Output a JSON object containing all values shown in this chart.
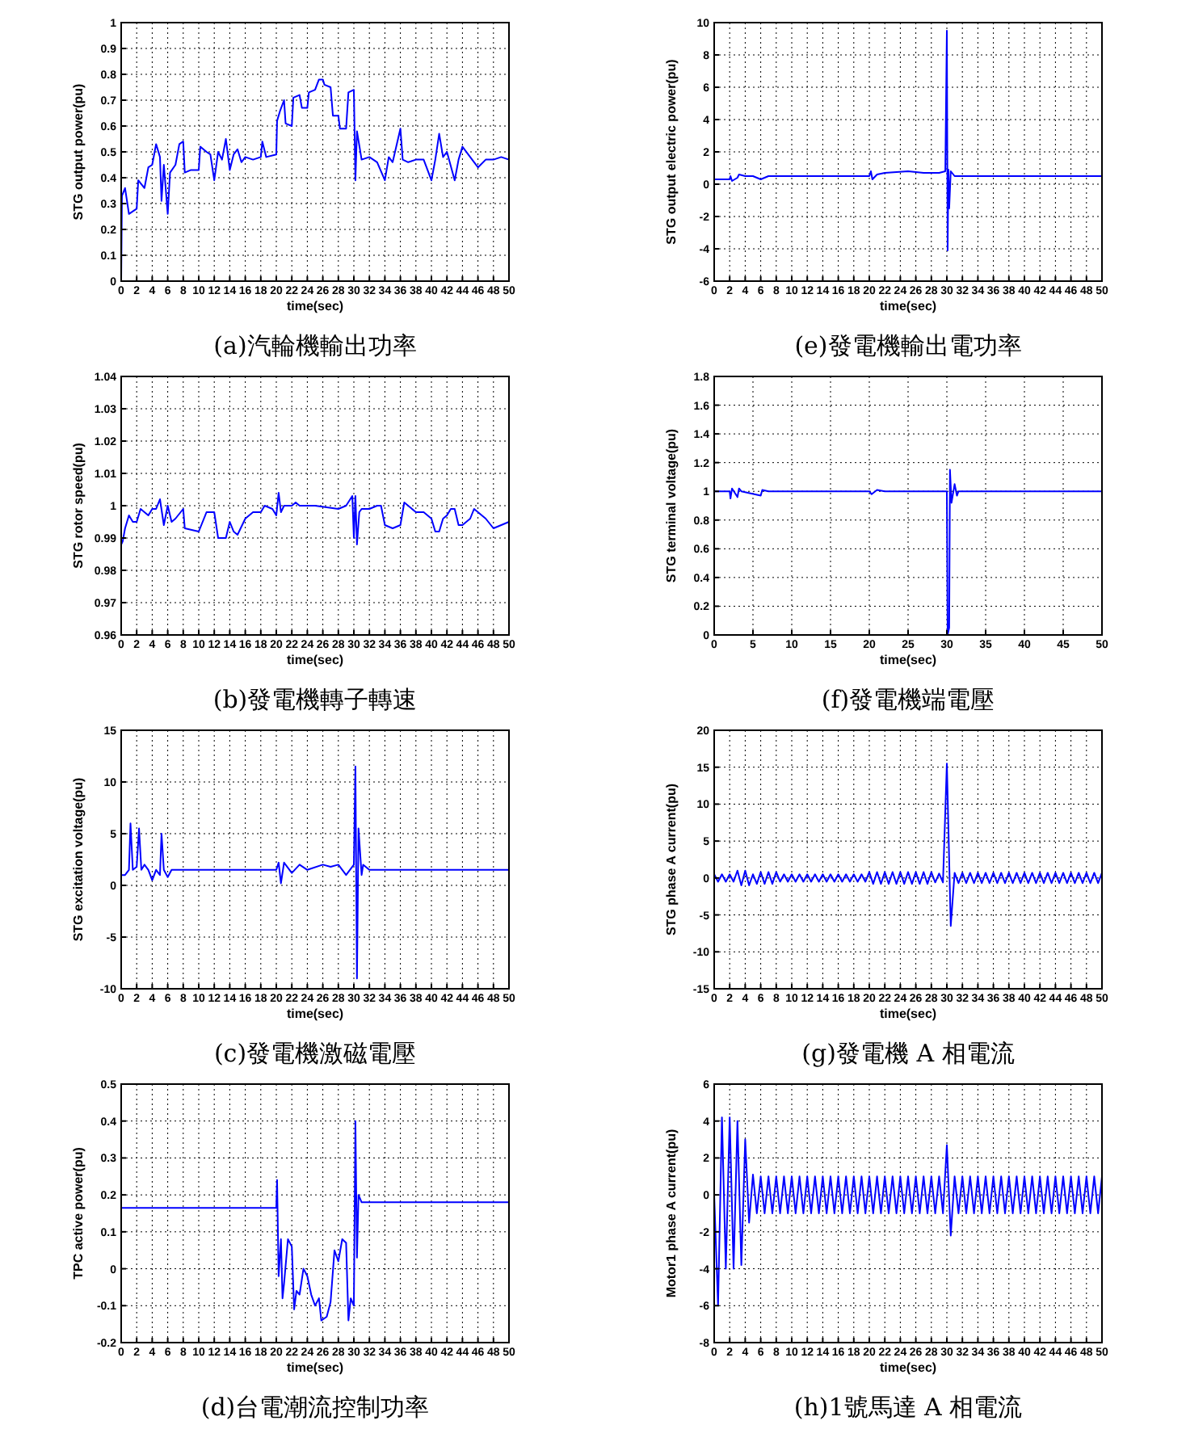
{
  "chart_data": [
    {
      "type": "line",
      "title": "(a)汽輪機輸出功率",
      "xlabel": "time(sec)",
      "ylabel": "STG output power(pu)",
      "xlim": [
        0,
        50
      ],
      "ylim": [
        0,
        1
      ],
      "xticks": [
        0,
        2,
        4,
        6,
        8,
        10,
        12,
        14,
        16,
        18,
        20,
        22,
        24,
        26,
        28,
        30,
        32,
        34,
        36,
        38,
        40,
        42,
        44,
        46,
        48,
        50
      ],
      "yticks": [
        0,
        0.1,
        0.2,
        0.3,
        0.4,
        0.5,
        0.6,
        0.7,
        0.8,
        0.9,
        1
      ],
      "grid": true,
      "series": [
        {
          "color": "#0000ff",
          "x": [
            0,
            0.1,
            0.5,
            1,
            1.5,
            2,
            2.2,
            3,
            3.5,
            4,
            4.5,
            5,
            5.2,
            5.5,
            6,
            6.3,
            7,
            7.5,
            8,
            8.2,
            9,
            10,
            10.2,
            11,
            11.5,
            12,
            12.5,
            13,
            13.5,
            14,
            14.5,
            15,
            15.5,
            16,
            17,
            18,
            18.2,
            18.7,
            20,
            20.1,
            20.5,
            21,
            21.2,
            22,
            22.2,
            23,
            23.3,
            24,
            24.2,
            25,
            25.5,
            26,
            26.2,
            27,
            27.3,
            28,
            28.2,
            29,
            29.3,
            30,
            30.2,
            30.4,
            31,
            32,
            33,
            34,
            34.5,
            35,
            36,
            36.3,
            37,
            38,
            39,
            40,
            40.5,
            41,
            41.5,
            42,
            43,
            43.5,
            44,
            45,
            46,
            47,
            48,
            49,
            50
          ],
          "values": [
            0,
            0.33,
            0.36,
            0.26,
            0.27,
            0.28,
            0.39,
            0.36,
            0.44,
            0.45,
            0.53,
            0.48,
            0.31,
            0.45,
            0.26,
            0.42,
            0.45,
            0.53,
            0.54,
            0.42,
            0.43,
            0.43,
            0.52,
            0.5,
            0.49,
            0.39,
            0.5,
            0.47,
            0.55,
            0.43,
            0.49,
            0.51,
            0.46,
            0.48,
            0.47,
            0.48,
            0.54,
            0.48,
            0.49,
            0.62,
            0.66,
            0.7,
            0.61,
            0.6,
            0.71,
            0.72,
            0.67,
            0.67,
            0.73,
            0.74,
            0.78,
            0.78,
            0.76,
            0.75,
            0.64,
            0.64,
            0.59,
            0.59,
            0.73,
            0.74,
            0.39,
            0.58,
            0.47,
            0.48,
            0.46,
            0.39,
            0.48,
            0.46,
            0.59,
            0.47,
            0.46,
            0.47,
            0.47,
            0.39,
            0.47,
            0.57,
            0.48,
            0.5,
            0.39,
            0.47,
            0.52,
            0.48,
            0.44,
            0.47,
            0.47,
            0.48,
            0.47
          ]
        }
      ]
    },
    {
      "type": "line",
      "title": "(e)發電機輸出電功率",
      "xlabel": "time(sec)",
      "ylabel": "STG output electric power(pu)",
      "xlim": [
        0,
        50
      ],
      "ylim": [
        -6,
        10
      ],
      "xticks": [
        0,
        2,
        4,
        6,
        8,
        10,
        12,
        14,
        16,
        18,
        20,
        22,
        24,
        26,
        28,
        30,
        32,
        34,
        36,
        38,
        40,
        42,
        44,
        46,
        48,
        50
      ],
      "yticks": [
        -6,
        -4,
        -2,
        0,
        2,
        4,
        6,
        8,
        10
      ],
      "grid": true,
      "series": [
        {
          "color": "#0000ff",
          "x": [
            0,
            2,
            2.1,
            2.3,
            3,
            3.2,
            4,
            5,
            6,
            7,
            8,
            20,
            20.2,
            20.4,
            21,
            22,
            25,
            27,
            29,
            29.8,
            30,
            30.1,
            30.2,
            30.3,
            30.5,
            31,
            50
          ],
          "values": [
            0.3,
            0.3,
            0.5,
            0.2,
            0.4,
            0.6,
            0.5,
            0.5,
            0.3,
            0.5,
            0.5,
            0.5,
            0.8,
            0.3,
            0.6,
            0.7,
            0.8,
            0.7,
            0.7,
            0.8,
            9.5,
            -4.1,
            0.9,
            -1.5,
            0.8,
            0.5,
            0.5
          ]
        }
      ]
    },
    {
      "type": "line",
      "title": "(b)發電機轉子轉速",
      "xlabel": "time(sec)",
      "ylabel": "STG rotor speed(pu)",
      "xlim": [
        0,
        50
      ],
      "ylim": [
        0.96,
        1.04
      ],
      "xticks": [
        0,
        2,
        4,
        6,
        8,
        10,
        12,
        14,
        16,
        18,
        20,
        22,
        24,
        26,
        28,
        30,
        32,
        34,
        36,
        38,
        40,
        42,
        44,
        46,
        48,
        50
      ],
      "yticks": [
        0.96,
        0.97,
        0.98,
        0.99,
        1,
        1.01,
        1.02,
        1.03,
        1.04
      ],
      "grid": true,
      "series": [
        {
          "color": "#0000ff",
          "x": [
            0,
            0.2,
            0.5,
            1,
            1.5,
            2,
            2.5,
            3,
            3.5,
            4,
            4.5,
            5,
            5.5,
            6,
            6.5,
            7,
            8,
            8.2,
            10,
            11,
            12,
            12.5,
            13.5,
            14,
            14.5,
            15,
            16,
            17,
            18,
            18.5,
            19.5,
            20,
            20.3,
            20.6,
            21,
            22,
            22.5,
            23,
            25,
            28,
            29,
            29.8,
            30,
            30.2,
            30.4,
            30.7,
            31,
            32,
            33,
            33.5,
            34,
            35,
            36,
            36.5,
            37,
            38,
            39,
            40,
            40.5,
            41,
            41.5,
            42,
            42.5,
            43,
            43.5,
            44,
            45,
            45.5,
            46,
            47,
            48,
            49,
            50
          ],
          "values": [
            0.988,
            0.989,
            0.993,
            0.997,
            0.995,
            0.995,
            0.999,
            0.998,
            0.997,
            0.999,
            0.999,
            1.002,
            0.994,
            1,
            0.995,
            0.996,
            0.999,
            0.993,
            0.992,
            0.998,
            0.998,
            0.99,
            0.99,
            0.995,
            0.992,
            0.991,
            0.996,
            0.998,
            0.998,
            1,
            0.999,
            0.997,
            1.004,
            0.998,
            1,
            1,
            1.001,
            1,
            1,
            0.999,
            1,
            1.003,
            0.99,
            1.003,
            0.988,
            0.998,
            0.999,
            0.999,
            1,
            1,
            0.994,
            0.993,
            0.994,
            1.001,
            1,
            0.998,
            0.998,
            0.996,
            0.992,
            0.992,
            0.996,
            0.997,
            0.999,
            0.999,
            0.994,
            0.994,
            0.996,
            0.999,
            0.998,
            0.996,
            0.993,
            0.994,
            0.995
          ]
        }
      ]
    },
    {
      "type": "line",
      "title": "(f)發電機端電壓",
      "xlabel": "time(sec)",
      "ylabel": "STG terminal voltage(pu)",
      "xlim": [
        0,
        50
      ],
      "ylim": [
        0,
        1.8
      ],
      "xticks": [
        0,
        5,
        10,
        15,
        20,
        25,
        30,
        35,
        40,
        45,
        50
      ],
      "yticks": [
        0,
        0.2,
        0.4,
        0.6,
        0.8,
        1,
        1.2,
        1.4,
        1.6,
        1.8
      ],
      "grid": true,
      "series": [
        {
          "color": "#0000ff",
          "x": [
            0,
            2,
            2.1,
            2.3,
            3,
            3.2,
            3.5,
            6,
            6.2,
            7,
            20,
            20.3,
            21,
            22,
            30,
            30.1,
            30.3,
            30.4,
            30.6,
            31,
            31.3,
            31.5,
            50
          ],
          "values": [
            1,
            1,
            0.95,
            1.02,
            0.96,
            1.02,
            1,
            0.97,
            1.01,
            1,
            1,
            0.98,
            1.01,
            1,
            1,
            0,
            0.05,
            1.15,
            0.92,
            1.05,
            0.97,
            1,
            1
          ]
        }
      ]
    },
    {
      "type": "line",
      "title": "(c)發電機激磁電壓",
      "xlabel": "time(sec)",
      "ylabel": "STG excitation voltage(pu)",
      "xlim": [
        0,
        50
      ],
      "ylim": [
        -10,
        15
      ],
      "xticks": [
        0,
        2,
        4,
        6,
        8,
        10,
        12,
        14,
        16,
        18,
        20,
        22,
        24,
        26,
        28,
        30,
        32,
        34,
        36,
        38,
        40,
        42,
        44,
        46,
        48,
        50
      ],
      "yticks": [
        -10,
        -5,
        0,
        5,
        10,
        15
      ],
      "grid": true,
      "series": [
        {
          "color": "#0000ff",
          "x": [
            0,
            0.5,
            1,
            1.2,
            1.5,
            2,
            2.3,
            2.6,
            3,
            3.5,
            4,
            4.5,
            5,
            5.2,
            5.5,
            6,
            6.5,
            8,
            20,
            20.3,
            20.6,
            21,
            22,
            23,
            24,
            26,
            27,
            28,
            29,
            30,
            30.2,
            30.4,
            30.6,
            31,
            31.2,
            32,
            50
          ],
          "values": [
            1,
            1,
            1.5,
            6,
            1.5,
            1.8,
            5.5,
            1.5,
            2,
            1.5,
            0.5,
            1.5,
            1,
            5,
            1.5,
            0.8,
            1.5,
            1.5,
            1.5,
            2.2,
            0.2,
            2.2,
            1.2,
            2,
            1.5,
            2,
            1.8,
            2,
            1,
            2,
            11.5,
            -9,
            5.5,
            1,
            2,
            1.5,
            1.5
          ]
        }
      ]
    },
    {
      "type": "line",
      "title": "(g)發電機 A 相電流",
      "xlabel": "time(sec)",
      "ylabel": "STG phase A current(pu)",
      "xlim": [
        0,
        50
      ],
      "ylim": [
        -15,
        20
      ],
      "xticks": [
        0,
        2,
        4,
        6,
        8,
        10,
        12,
        14,
        16,
        18,
        20,
        22,
        24,
        26,
        28,
        30,
        32,
        34,
        36,
        38,
        40,
        42,
        44,
        46,
        48,
        50
      ],
      "yticks": [
        -15,
        -10,
        -5,
        0,
        5,
        10,
        15,
        20
      ],
      "grid": true,
      "series": [
        {
          "color": "#0000ff",
          "x": [
            0,
            0.5,
            1,
            1.5,
            2,
            2.5,
            3,
            3.5,
            4,
            4.5,
            5,
            5.5,
            6,
            6.5,
            7,
            7.5,
            8,
            8.5,
            9,
            9.5,
            10,
            10.5,
            11,
            11.5,
            12,
            12.5,
            13,
            13.5,
            14,
            14.5,
            15,
            15.5,
            16,
            16.5,
            17,
            17.5,
            18,
            18.5,
            19,
            19.5,
            20,
            20.5,
            21,
            21.5,
            22,
            22.5,
            23,
            23.5,
            24,
            24.5,
            25,
            25.5,
            26,
            26.5,
            27,
            27.5,
            28,
            28.5,
            29,
            29.5,
            30,
            30.5,
            31,
            31.5,
            32,
            32.5,
            33,
            33.5,
            34,
            34.5,
            35,
            35.5,
            36,
            36.5,
            37,
            37.5,
            38,
            38.5,
            39,
            39.5,
            40,
            40.5,
            41,
            41.5,
            42,
            42.5,
            43,
            43.5,
            44,
            44.5,
            45,
            45.5,
            46,
            46.5,
            47,
            47.5,
            48,
            48.5,
            49,
            49.5,
            50
          ],
          "values": [
            0.5,
            -0.5,
            0.5,
            -0.5,
            0.5,
            -0.5,
            1,
            -1,
            1,
            -1,
            0.5,
            -0.8,
            0.8,
            -0.8,
            0.8,
            -0.8,
            0.8,
            -0.5,
            0.5,
            -0.5,
            0.5,
            -0.5,
            0.5,
            -0.5,
            0.5,
            -0.5,
            0.5,
            -0.5,
            0.5,
            -0.5,
            0.5,
            -0.5,
            0.5,
            -0.5,
            0.5,
            -0.5,
            0.5,
            -0.5,
            0.5,
            -0.5,
            0.8,
            -0.8,
            0.8,
            -0.8,
            0.8,
            -0.8,
            0.8,
            -0.8,
            0.8,
            -0.8,
            0.8,
            -0.8,
            0.8,
            -0.8,
            0.8,
            -0.8,
            0.8,
            -0.6,
            0.6,
            -0.6,
            15.5,
            -6.5,
            0.7,
            -0.7,
            0.7,
            -0.7,
            0.7,
            -0.7,
            0.7,
            -0.7,
            0.7,
            -0.7,
            0.7,
            -0.7,
            0.7,
            -0.7,
            0.7,
            -0.7,
            0.7,
            -0.7,
            0.7,
            -0.7,
            0.7,
            -0.7,
            0.7,
            -0.7,
            0.7,
            -0.7,
            0.7,
            -0.7,
            0.7,
            -0.7,
            0.7,
            -0.7,
            0.7,
            -0.7,
            0.7,
            -0.7,
            0.7,
            -0.7,
            0.7
          ]
        }
      ]
    },
    {
      "type": "line",
      "title": "(d)台電潮流控制功率",
      "xlabel": "time(sec)",
      "ylabel": "TPC active power(pu)",
      "xlim": [
        0,
        50
      ],
      "ylim": [
        -0.2,
        0.5
      ],
      "xticks": [
        0,
        2,
        4,
        6,
        8,
        10,
        12,
        14,
        16,
        18,
        20,
        22,
        24,
        26,
        28,
        30,
        32,
        34,
        36,
        38,
        40,
        42,
        44,
        46,
        48,
        50
      ],
      "yticks": [
        -0.2,
        -0.1,
        0,
        0.1,
        0.2,
        0.3,
        0.4,
        0.5
      ],
      "grid": true,
      "series": [
        {
          "color": "#0000ff",
          "x": [
            0.05,
            20,
            20.1,
            20.3,
            20.6,
            20.8,
            21,
            21.5,
            22,
            22.3,
            22.6,
            23,
            23.5,
            24,
            24.5,
            25,
            25.5,
            25.8,
            26.5,
            27,
            27.5,
            28,
            28.5,
            29,
            29.3,
            29.6,
            30,
            30.2,
            30.4,
            30.6,
            31,
            50
          ],
          "values": [
            0.165,
            0.165,
            0.24,
            -0.02,
            0.08,
            -0.08,
            -0.04,
            0.08,
            0.06,
            -0.11,
            -0.06,
            -0.07,
            0,
            -0.02,
            -0.07,
            -0.1,
            -0.08,
            -0.14,
            -0.13,
            -0.09,
            0.05,
            0.02,
            0.08,
            0.07,
            -0.14,
            -0.08,
            -0.1,
            0.4,
            0.03,
            0.2,
            0.18,
            0.18
          ]
        }
      ]
    },
    {
      "type": "line",
      "title": "(h)1號馬達 A 相電流",
      "xlabel": "time(sec)",
      "ylabel": "Motor1 phase A current(pu)",
      "xlim": [
        0,
        50
      ],
      "ylim": [
        -8,
        6
      ],
      "xticks": [
        0,
        2,
        4,
        6,
        8,
        10,
        12,
        14,
        16,
        18,
        20,
        22,
        24,
        26,
        28,
        30,
        32,
        34,
        36,
        38,
        40,
        42,
        44,
        46,
        48,
        50
      ],
      "yticks": [
        -8,
        -6,
        -4,
        -2,
        0,
        2,
        4,
        6
      ],
      "grid": true,
      "series": [
        {
          "color": "#0000ff",
          "x": [
            0,
            0.5,
            1,
            1.5,
            2,
            2.5,
            3,
            3.5,
            4,
            4.5,
            5,
            5.5,
            6,
            6.5,
            7,
            7.5,
            8,
            8.5,
            9,
            9.5,
            10,
            10.5,
            11,
            11.5,
            12,
            12.5,
            13,
            13.5,
            14,
            14.5,
            15,
            15.5,
            16,
            16.5,
            17,
            17.5,
            18,
            18.5,
            19,
            19.5,
            20,
            20.5,
            21,
            21.5,
            22,
            22.5,
            23,
            23.5,
            24,
            24.5,
            25,
            25.5,
            26,
            26.5,
            27,
            27.5,
            28,
            28.5,
            29,
            29.5,
            30,
            30.5,
            31,
            31.5,
            32,
            32.5,
            33,
            33.5,
            34,
            34.5,
            35,
            35.5,
            36,
            36.5,
            37,
            37.5,
            38,
            38.5,
            39,
            39.5,
            40,
            40.5,
            41,
            41.5,
            42,
            42.5,
            43,
            43.5,
            44,
            44.5,
            45,
            45.5,
            46,
            46.5,
            47,
            47.5,
            48,
            48.5,
            49,
            49.5,
            50
          ],
          "values": [
            0,
            -6,
            4.2,
            -4,
            4.2,
            -4,
            4,
            -3.8,
            3,
            -1.5,
            1.1,
            -1,
            1,
            -1,
            1,
            -1,
            1,
            -1,
            1,
            -1,
            1,
            -1,
            1,
            -1,
            1,
            -1,
            1,
            -1,
            1,
            -1,
            1,
            -1,
            1,
            -1,
            1,
            -1,
            1,
            -1,
            1,
            -1,
            1,
            -1,
            1,
            -1,
            1,
            -1,
            1,
            -1,
            1,
            -1,
            1,
            -1,
            1,
            -1,
            1,
            -1,
            1,
            -1,
            1,
            -1,
            2.7,
            -2.2,
            1,
            -1,
            1,
            -1,
            1,
            -1,
            1,
            -1,
            1,
            -1,
            1,
            -1,
            1,
            -1,
            1,
            -1,
            1,
            -1,
            1,
            -1,
            1,
            -1,
            1,
            -1,
            1,
            -1,
            1,
            -1,
            1,
            -1,
            1,
            -1,
            1,
            -1,
            1,
            -1,
            1,
            -1,
            1
          ]
        }
      ]
    }
  ]
}
